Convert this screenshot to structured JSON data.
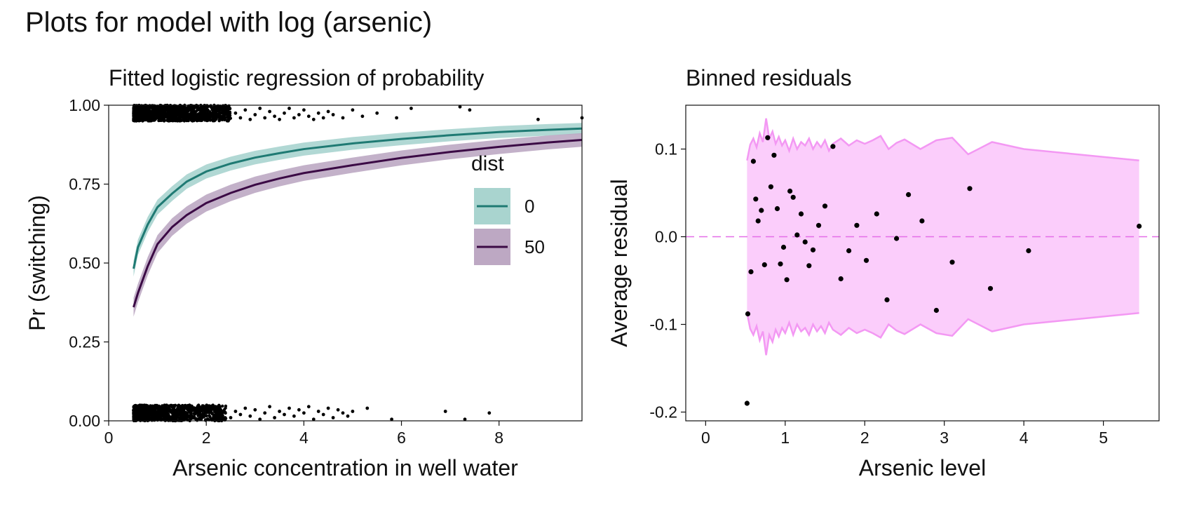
{
  "figure": {
    "suptitle": "Plots for model with log (arsenic)"
  },
  "chart_data": [
    {
      "type": "line",
      "title": "Fitted logistic regression of probability",
      "xlabel": "Arsenic concentration in well water",
      "ylabel": "Pr (switching)",
      "xlim": [
        0,
        9.7
      ],
      "ylim": [
        0,
        1
      ],
      "xticks": [
        0,
        2,
        4,
        6,
        8
      ],
      "xtick_labels": [
        "0",
        "2",
        "4",
        "6",
        "8"
      ],
      "yticks": [
        0,
        0.25,
        0.5,
        0.75,
        1.0
      ],
      "ytick_labels": [
        "0.00",
        "0.25",
        "0.50",
        "0.75",
        "1.00"
      ],
      "grid": false,
      "legend": {
        "title": "dist",
        "placement": "right",
        "entries": [
          "0",
          "50"
        ]
      },
      "series": [
        {
          "name": "0",
          "color": "#1f7a73",
          "band_color": "#a9d4cf",
          "x": [
            0.51,
            0.6,
            0.8,
            1.0,
            1.3,
            1.6,
            2.0,
            2.5,
            3.0,
            3.5,
            4.0,
            5.0,
            6.0,
            7.0,
            8.0,
            9.0,
            9.7
          ],
          "y": [
            0.482,
            0.55,
            0.622,
            0.677,
            0.72,
            0.758,
            0.79,
            0.815,
            0.834,
            0.848,
            0.861,
            0.879,
            0.893,
            0.905,
            0.915,
            0.922,
            0.926
          ],
          "band_half_width": 0.025
        },
        {
          "name": "50",
          "color": "#3b0a45",
          "band_color": "#bda8c3",
          "x": [
            0.51,
            0.6,
            0.8,
            1.0,
            1.3,
            1.6,
            2.0,
            2.5,
            3.0,
            3.5,
            4.0,
            5.0,
            6.0,
            7.0,
            8.0,
            9.0,
            9.7
          ],
          "y": [
            0.36,
            0.405,
            0.49,
            0.56,
            0.614,
            0.652,
            0.69,
            0.722,
            0.748,
            0.768,
            0.785,
            0.81,
            0.833,
            0.852,
            0.868,
            0.882,
            0.89
          ],
          "band_half_width": 0.03
        }
      ],
      "jitter_points": {
        "color": "#000000",
        "switched": {
          "y_range": [
            0.95,
            1.0
          ],
          "dense_x_range": [
            0.51,
            2.5
          ],
          "sparse_x": [
            2.6,
            2.7,
            2.8,
            2.9,
            3.0,
            3.1,
            3.2,
            3.3,
            3.4,
            3.5,
            3.6,
            3.7,
            3.8,
            3.9,
            4.0,
            4.1,
            4.2,
            4.3,
            4.4,
            4.5,
            4.6,
            4.8,
            5.0,
            5.2,
            5.5,
            5.9,
            6.2,
            7.2,
            7.4,
            8.8,
            9.7
          ],
          "sparse_y": [
            0.975,
            0.96,
            0.985,
            0.955,
            0.97,
            0.99,
            0.96,
            0.98,
            0.965,
            0.955,
            0.975,
            0.99,
            0.96,
            0.97,
            0.985,
            0.965,
            0.955,
            0.975,
            0.96,
            0.98,
            0.97,
            0.96,
            0.985,
            0.965,
            0.975,
            0.96,
            0.99,
            0.995,
            0.985,
            0.955,
            0.96
          ]
        },
        "not_switched": {
          "y_range": [
            0.0,
            0.05
          ],
          "dense_x_range": [
            0.51,
            2.4
          ],
          "sparse_x": [
            2.5,
            2.6,
            2.7,
            2.8,
            2.9,
            3.0,
            3.1,
            3.2,
            3.3,
            3.4,
            3.5,
            3.6,
            3.7,
            3.8,
            3.9,
            4.0,
            4.1,
            4.2,
            4.3,
            4.4,
            4.5,
            4.6,
            4.7,
            4.8,
            4.9,
            5.0,
            5.3,
            5.8,
            6.9,
            7.3,
            7.8
          ],
          "sparse_y": [
            0.01,
            0.03,
            0.02,
            0.04,
            0.015,
            0.035,
            0.005,
            0.025,
            0.045,
            0.01,
            0.03,
            0.02,
            0.04,
            0.015,
            0.035,
            0.025,
            0.045,
            0.005,
            0.03,
            0.02,
            0.04,
            0.01,
            0.035,
            0.025,
            0.015,
            0.03,
            0.04,
            0.005,
            0.03,
            0.005,
            0.025
          ]
        }
      }
    },
    {
      "type": "scatter",
      "title": "Binned residuals",
      "xlabel": "Arsenic level",
      "ylabel": "Average residual",
      "xlim": [
        -0.25,
        5.7
      ],
      "ylim": [
        -0.21,
        0.15
      ],
      "xticks": [
        0,
        1,
        2,
        3,
        4,
        5
      ],
      "xtick_labels": [
        "0",
        "1",
        "2",
        "3",
        "4",
        "5"
      ],
      "yticks": [
        -0.2,
        -0.1,
        0.0,
        0.1
      ],
      "ytick_labels": [
        "-0.2",
        "-0.1",
        "0.0",
        "0.1"
      ],
      "grid": false,
      "zero_line_color": "#e46ee8",
      "band_color": "#fbcdfb",
      "band_edge_color": "#f398f3",
      "band": {
        "x": [
          0.52,
          0.56,
          0.6,
          0.64,
          0.68,
          0.72,
          0.76,
          0.8,
          0.84,
          0.88,
          0.92,
          0.96,
          1.0,
          1.05,
          1.1,
          1.15,
          1.2,
          1.25,
          1.3,
          1.35,
          1.4,
          1.45,
          1.5,
          1.55,
          1.6,
          1.7,
          1.8,
          1.9,
          2.0,
          2.1,
          2.2,
          2.3,
          2.4,
          2.5,
          2.7,
          2.9,
          3.1,
          3.3,
          3.6,
          4.0,
          5.45
        ],
        "upper": [
          0.087,
          0.105,
          0.112,
          0.102,
          0.118,
          0.108,
          0.135,
          0.112,
          0.12,
          0.106,
          0.114,
          0.104,
          0.11,
          0.098,
          0.112,
          0.1,
          0.108,
          0.104,
          0.112,
          0.1,
          0.108,
          0.102,
          0.11,
          0.098,
          0.106,
          0.112,
          0.104,
          0.11,
          0.106,
          0.11,
          0.115,
          0.1,
          0.107,
          0.111,
          0.1,
          0.11,
          0.113,
          0.094,
          0.108,
          0.1,
          0.087
        ],
        "lower": [
          -0.087,
          -0.105,
          -0.112,
          -0.102,
          -0.118,
          -0.108,
          -0.135,
          -0.112,
          -0.12,
          -0.106,
          -0.114,
          -0.104,
          -0.11,
          -0.098,
          -0.112,
          -0.1,
          -0.108,
          -0.104,
          -0.112,
          -0.1,
          -0.108,
          -0.102,
          -0.11,
          -0.098,
          -0.106,
          -0.112,
          -0.104,
          -0.11,
          -0.106,
          -0.11,
          -0.115,
          -0.1,
          -0.107,
          -0.111,
          -0.1,
          -0.11,
          -0.113,
          -0.094,
          -0.108,
          -0.1,
          -0.087
        ]
      },
      "points": {
        "color": "#000000",
        "x": [
          0.52,
          0.53,
          0.57,
          0.6,
          0.63,
          0.66,
          0.7,
          0.74,
          0.78,
          0.82,
          0.86,
          0.9,
          0.94,
          0.98,
          1.02,
          1.06,
          1.1,
          1.15,
          1.2,
          1.25,
          1.3,
          1.35,
          1.42,
          1.5,
          1.6,
          1.7,
          1.8,
          1.9,
          2.02,
          2.15,
          2.28,
          2.4,
          2.55,
          2.72,
          2.9,
          3.1,
          3.32,
          3.58,
          4.06,
          5.45
        ],
        "y": [
          -0.19,
          -0.088,
          -0.04,
          0.086,
          0.043,
          0.018,
          0.03,
          -0.032,
          0.113,
          0.057,
          0.093,
          0.032,
          -0.031,
          -0.012,
          -0.049,
          0.052,
          0.045,
          0.002,
          0.026,
          -0.006,
          -0.033,
          -0.015,
          0.013,
          0.035,
          0.103,
          -0.048,
          -0.016,
          0.013,
          -0.027,
          0.026,
          -0.072,
          -0.002,
          0.048,
          0.018,
          -0.084,
          -0.029,
          0.055,
          -0.059,
          -0.016,
          0.012
        ]
      }
    }
  ]
}
